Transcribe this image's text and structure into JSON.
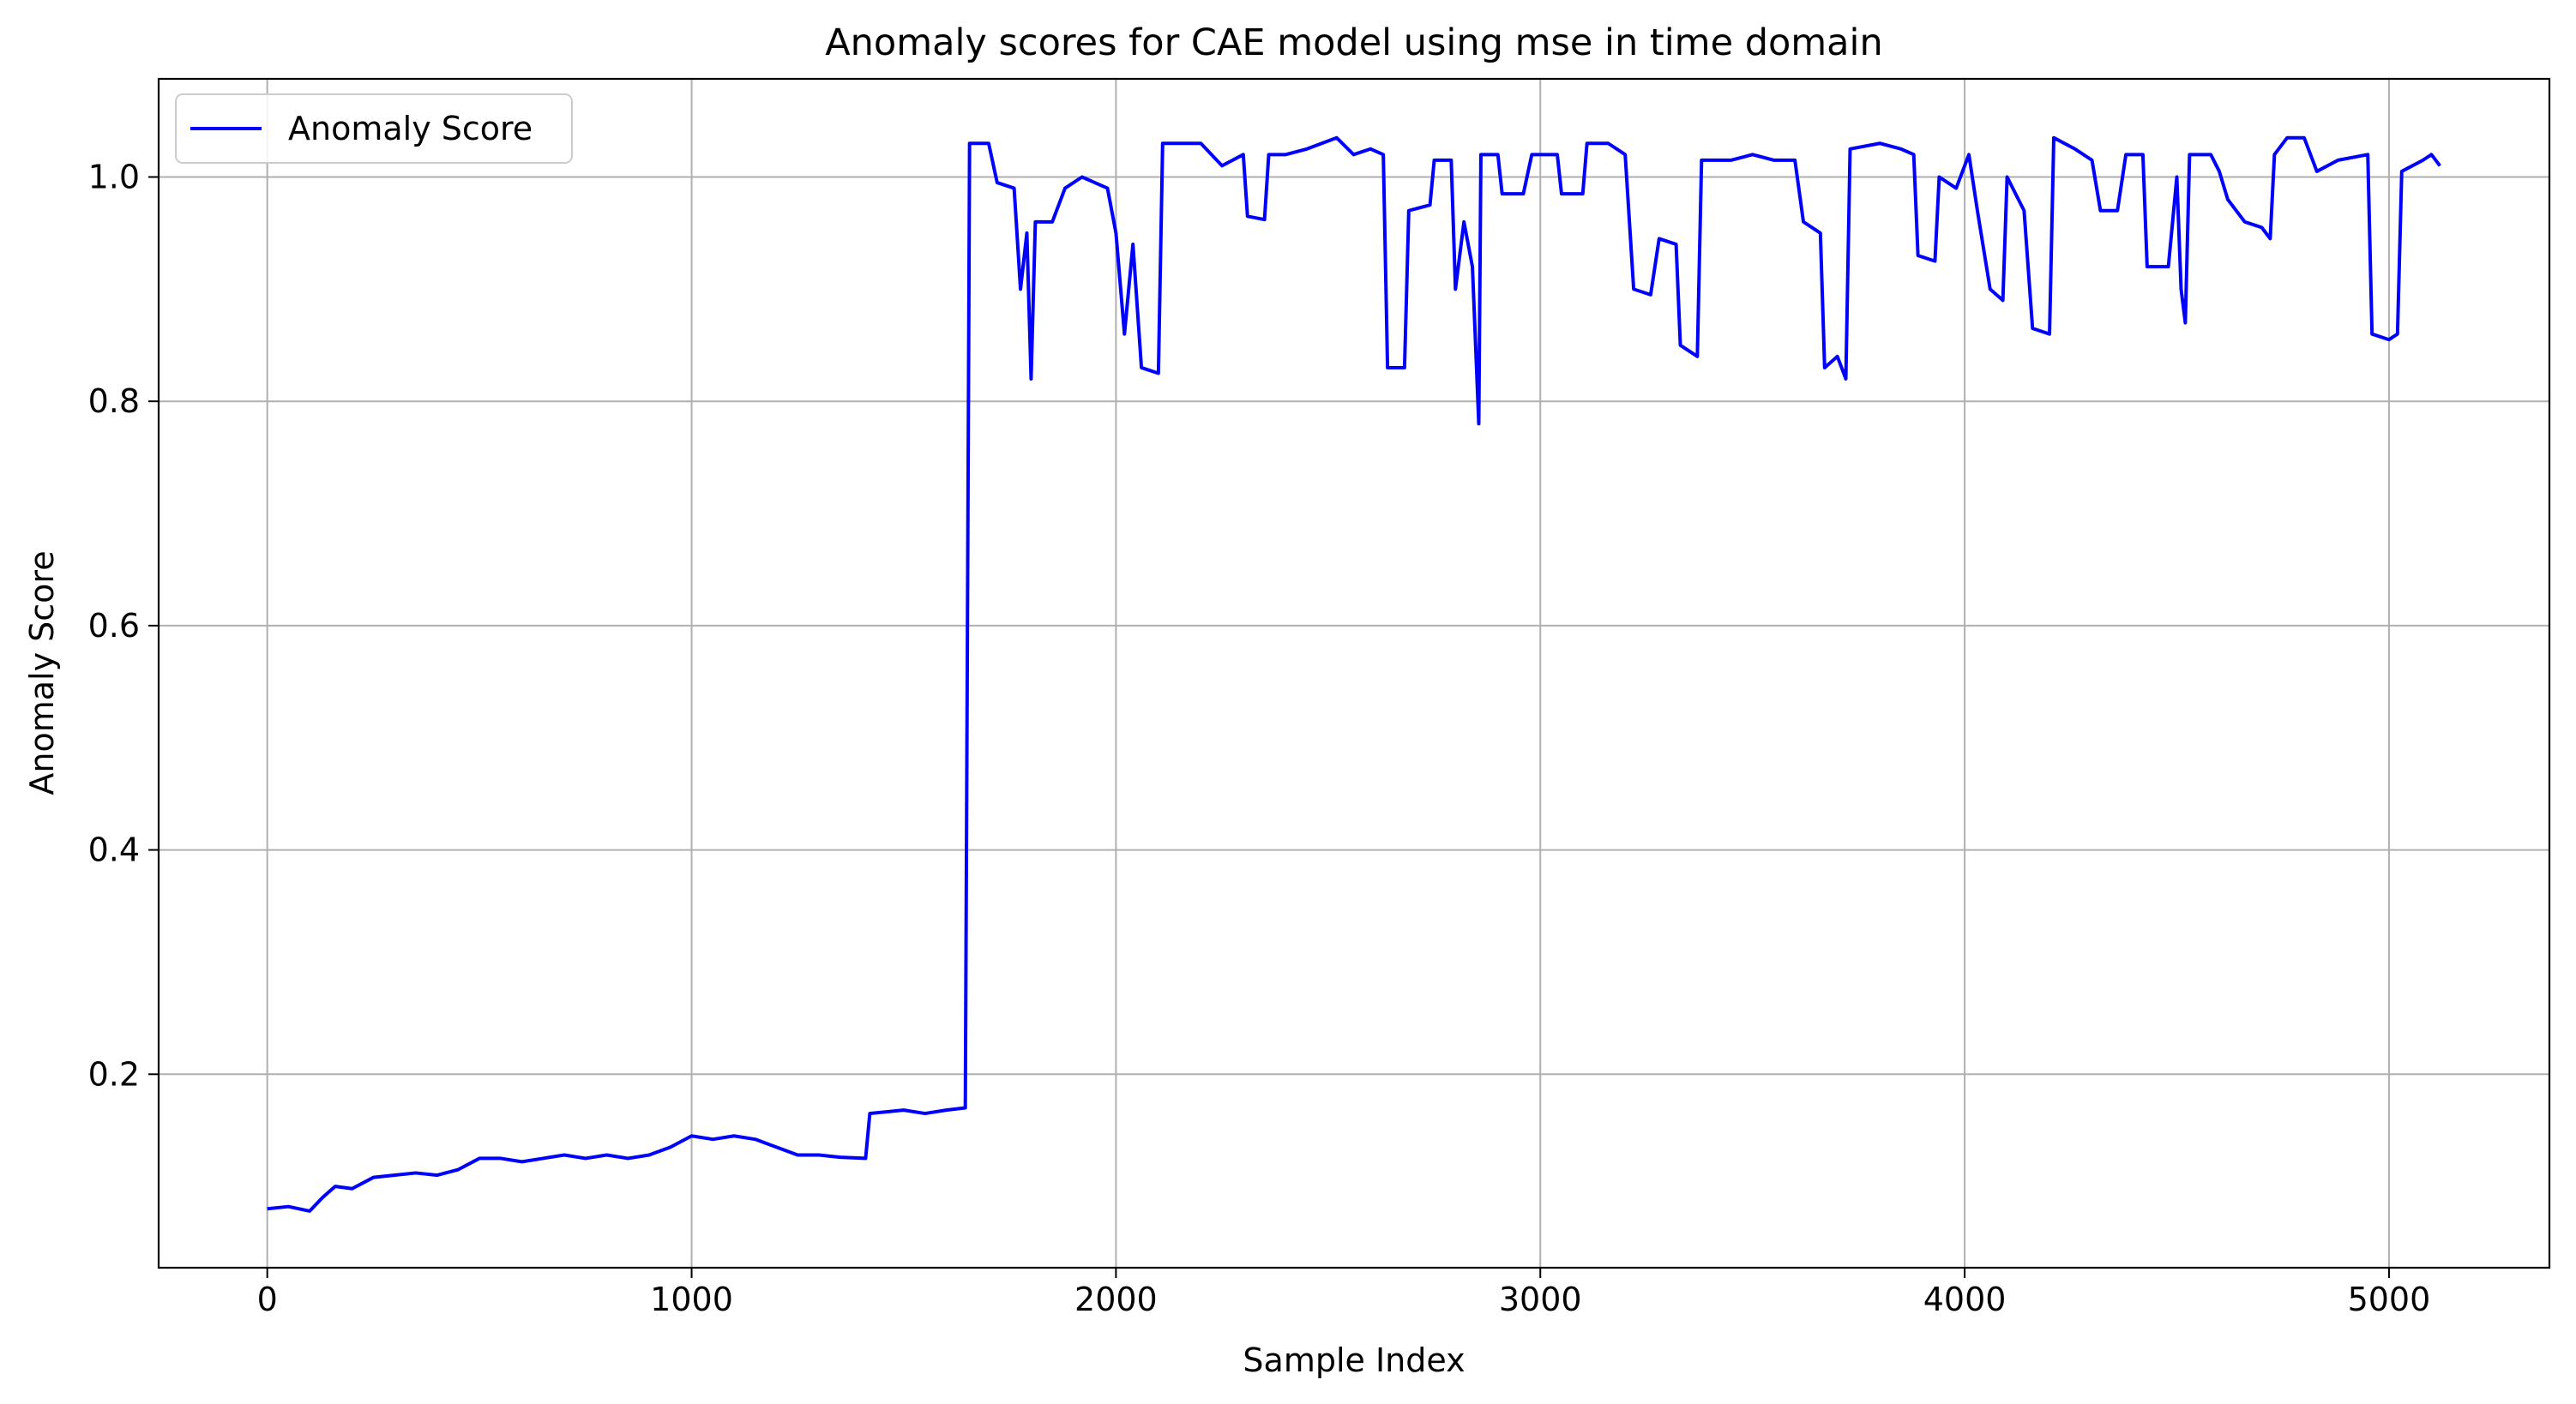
{
  "chart_data": {
    "type": "line",
    "title": "Anomaly scores for CAE model using mse in time domain",
    "xlabel": "Sample Index",
    "ylabel": "Anomaly Score",
    "xlim": [
      -256,
      5378
    ],
    "ylim": [
      0.0275,
      1.0875
    ],
    "xticks": [
      0,
      1000,
      2000,
      3000,
      4000,
      5000
    ],
    "xtick_labels": [
      "0",
      "1000",
      "2000",
      "3000",
      "4000",
      "5000"
    ],
    "yticks": [
      0.2,
      0.4,
      0.6,
      0.8,
      1.0
    ],
    "ytick_labels": [
      "0.2",
      "0.4",
      "0.6",
      "0.8",
      "1.0"
    ],
    "grid": true,
    "legend": {
      "position": "top-left",
      "entries": [
        "Anomaly Score"
      ]
    },
    "series": [
      {
        "name": "Anomaly Score",
        "color": "#0000ff",
        "points": [
          [
            0,
            0.08
          ],
          [
            50,
            0.082
          ],
          [
            100,
            0.078
          ],
          [
            130,
            0.09
          ],
          [
            160,
            0.1
          ],
          [
            200,
            0.098
          ],
          [
            250,
            0.108
          ],
          [
            300,
            0.11
          ],
          [
            350,
            0.112
          ],
          [
            400,
            0.11
          ],
          [
            450,
            0.115
          ],
          [
            500,
            0.125
          ],
          [
            550,
            0.125
          ],
          [
            600,
            0.122
          ],
          [
            650,
            0.125
          ],
          [
            700,
            0.128
          ],
          [
            750,
            0.125
          ],
          [
            800,
            0.128
          ],
          [
            850,
            0.125
          ],
          [
            900,
            0.128
          ],
          [
            950,
            0.135
          ],
          [
            1000,
            0.145
          ],
          [
            1050,
            0.142
          ],
          [
            1100,
            0.145
          ],
          [
            1150,
            0.142
          ],
          [
            1200,
            0.135
          ],
          [
            1250,
            0.128
          ],
          [
            1300,
            0.128
          ],
          [
            1350,
            0.126
          ],
          [
            1410,
            0.125
          ],
          [
            1420,
            0.165
          ],
          [
            1500,
            0.168
          ],
          [
            1550,
            0.165
          ],
          [
            1600,
            0.168
          ],
          [
            1645,
            0.17
          ],
          [
            1650,
            0.6
          ],
          [
            1655,
            1.03
          ],
          [
            1700,
            1.03
          ],
          [
            1720,
            0.995
          ],
          [
            1760,
            0.99
          ],
          [
            1775,
            0.9
          ],
          [
            1790,
            0.95
          ],
          [
            1800,
            0.82
          ],
          [
            1810,
            0.96
          ],
          [
            1850,
            0.96
          ],
          [
            1880,
            0.99
          ],
          [
            1920,
            1.0
          ],
          [
            1950,
            0.995
          ],
          [
            1980,
            0.99
          ],
          [
            2000,
            0.95
          ],
          [
            2020,
            0.86
          ],
          [
            2040,
            0.94
          ],
          [
            2060,
            0.83
          ],
          [
            2100,
            0.825
          ],
          [
            2110,
            1.03
          ],
          [
            2200,
            1.03
          ],
          [
            2250,
            1.01
          ],
          [
            2300,
            1.02
          ],
          [
            2310,
            0.965
          ],
          [
            2350,
            0.962
          ],
          [
            2360,
            1.02
          ],
          [
            2400,
            1.02
          ],
          [
            2450,
            1.025
          ],
          [
            2520,
            1.035
          ],
          [
            2560,
            1.02
          ],
          [
            2600,
            1.025
          ],
          [
            2630,
            1.02
          ],
          [
            2640,
            0.83
          ],
          [
            2680,
            0.83
          ],
          [
            2690,
            0.97
          ],
          [
            2740,
            0.975
          ],
          [
            2750,
            1.015
          ],
          [
            2790,
            1.015
          ],
          [
            2800,
            0.9
          ],
          [
            2820,
            0.96
          ],
          [
            2840,
            0.92
          ],
          [
            2855,
            0.78
          ],
          [
            2860,
            1.02
          ],
          [
            2900,
            1.02
          ],
          [
            2910,
            0.985
          ],
          [
            2960,
            0.985
          ],
          [
            2980,
            1.02
          ],
          [
            3040,
            1.02
          ],
          [
            3050,
            0.985
          ],
          [
            3100,
            0.985
          ],
          [
            3110,
            1.03
          ],
          [
            3160,
            1.03
          ],
          [
            3200,
            1.02
          ],
          [
            3220,
            0.9
          ],
          [
            3260,
            0.895
          ],
          [
            3280,
            0.945
          ],
          [
            3320,
            0.94
          ],
          [
            3330,
            0.85
          ],
          [
            3370,
            0.84
          ],
          [
            3380,
            1.015
          ],
          [
            3450,
            1.015
          ],
          [
            3500,
            1.02
          ],
          [
            3550,
            1.015
          ],
          [
            3600,
            1.015
          ],
          [
            3620,
            0.96
          ],
          [
            3660,
            0.95
          ],
          [
            3670,
            0.83
          ],
          [
            3700,
            0.84
          ],
          [
            3720,
            0.82
          ],
          [
            3730,
            1.025
          ],
          [
            3800,
            1.03
          ],
          [
            3850,
            1.025
          ],
          [
            3880,
            1.02
          ],
          [
            3890,
            0.93
          ],
          [
            3930,
            0.925
          ],
          [
            3940,
            1.0
          ],
          [
            3980,
            0.99
          ],
          [
            4010,
            1.02
          ],
          [
            4030,
            0.97
          ],
          [
            4060,
            0.9
          ],
          [
            4090,
            0.89
          ],
          [
            4100,
            1.0
          ],
          [
            4140,
            0.97
          ],
          [
            4160,
            0.865
          ],
          [
            4200,
            0.86
          ],
          [
            4210,
            1.035
          ],
          [
            4260,
            1.025
          ],
          [
            4300,
            1.015
          ],
          [
            4320,
            0.97
          ],
          [
            4360,
            0.97
          ],
          [
            4380,
            1.02
          ],
          [
            4420,
            1.02
          ],
          [
            4430,
            0.92
          ],
          [
            4480,
            0.92
          ],
          [
            4500,
            1.0
          ],
          [
            4510,
            0.9
          ],
          [
            4520,
            0.87
          ],
          [
            4530,
            1.02
          ],
          [
            4580,
            1.02
          ],
          [
            4600,
            1.005
          ],
          [
            4620,
            0.98
          ],
          [
            4660,
            0.96
          ],
          [
            4700,
            0.955
          ],
          [
            4720,
            0.945
          ],
          [
            4730,
            1.02
          ],
          [
            4760,
            1.035
          ],
          [
            4800,
            1.035
          ],
          [
            4830,
            1.005
          ],
          [
            4880,
            1.015
          ],
          [
            4950,
            1.02
          ],
          [
            4960,
            0.86
          ],
          [
            5000,
            0.855
          ],
          [
            5020,
            0.86
          ],
          [
            5030,
            1.005
          ],
          [
            5080,
            1.015
          ],
          [
            5100,
            1.02
          ],
          [
            5120,
            1.01
          ]
        ]
      }
    ]
  }
}
